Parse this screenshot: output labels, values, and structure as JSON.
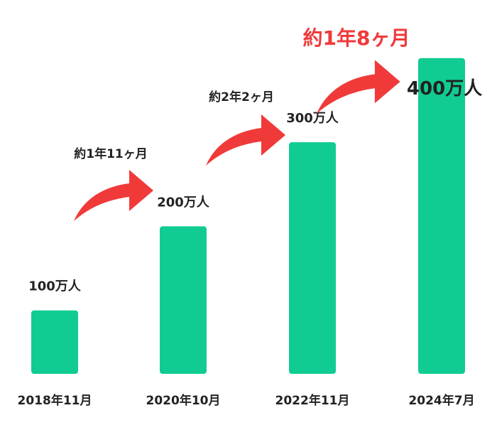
{
  "chart_data": {
    "type": "bar",
    "categories": [
      "2018年11月",
      "2020年10月",
      "2022年11月",
      "2024年7月"
    ],
    "values": [
      100,
      200,
      300,
      400
    ],
    "value_labels": [
      "100万人",
      "200万人",
      "300万人",
      "400万人"
    ],
    "ylim": [
      0,
      400
    ],
    "grid": false,
    "intervals": [
      {
        "label": "約1年11ヶ月",
        "highlight": false
      },
      {
        "label": "約2年2ヶ月",
        "highlight": false
      },
      {
        "label": "約1年8ヶ月",
        "highlight": true
      }
    ],
    "colors": {
      "bar": "#10cc93",
      "arrow": "#f03a3a",
      "highlight_text": "#f03a3a",
      "text": "#222222"
    }
  }
}
